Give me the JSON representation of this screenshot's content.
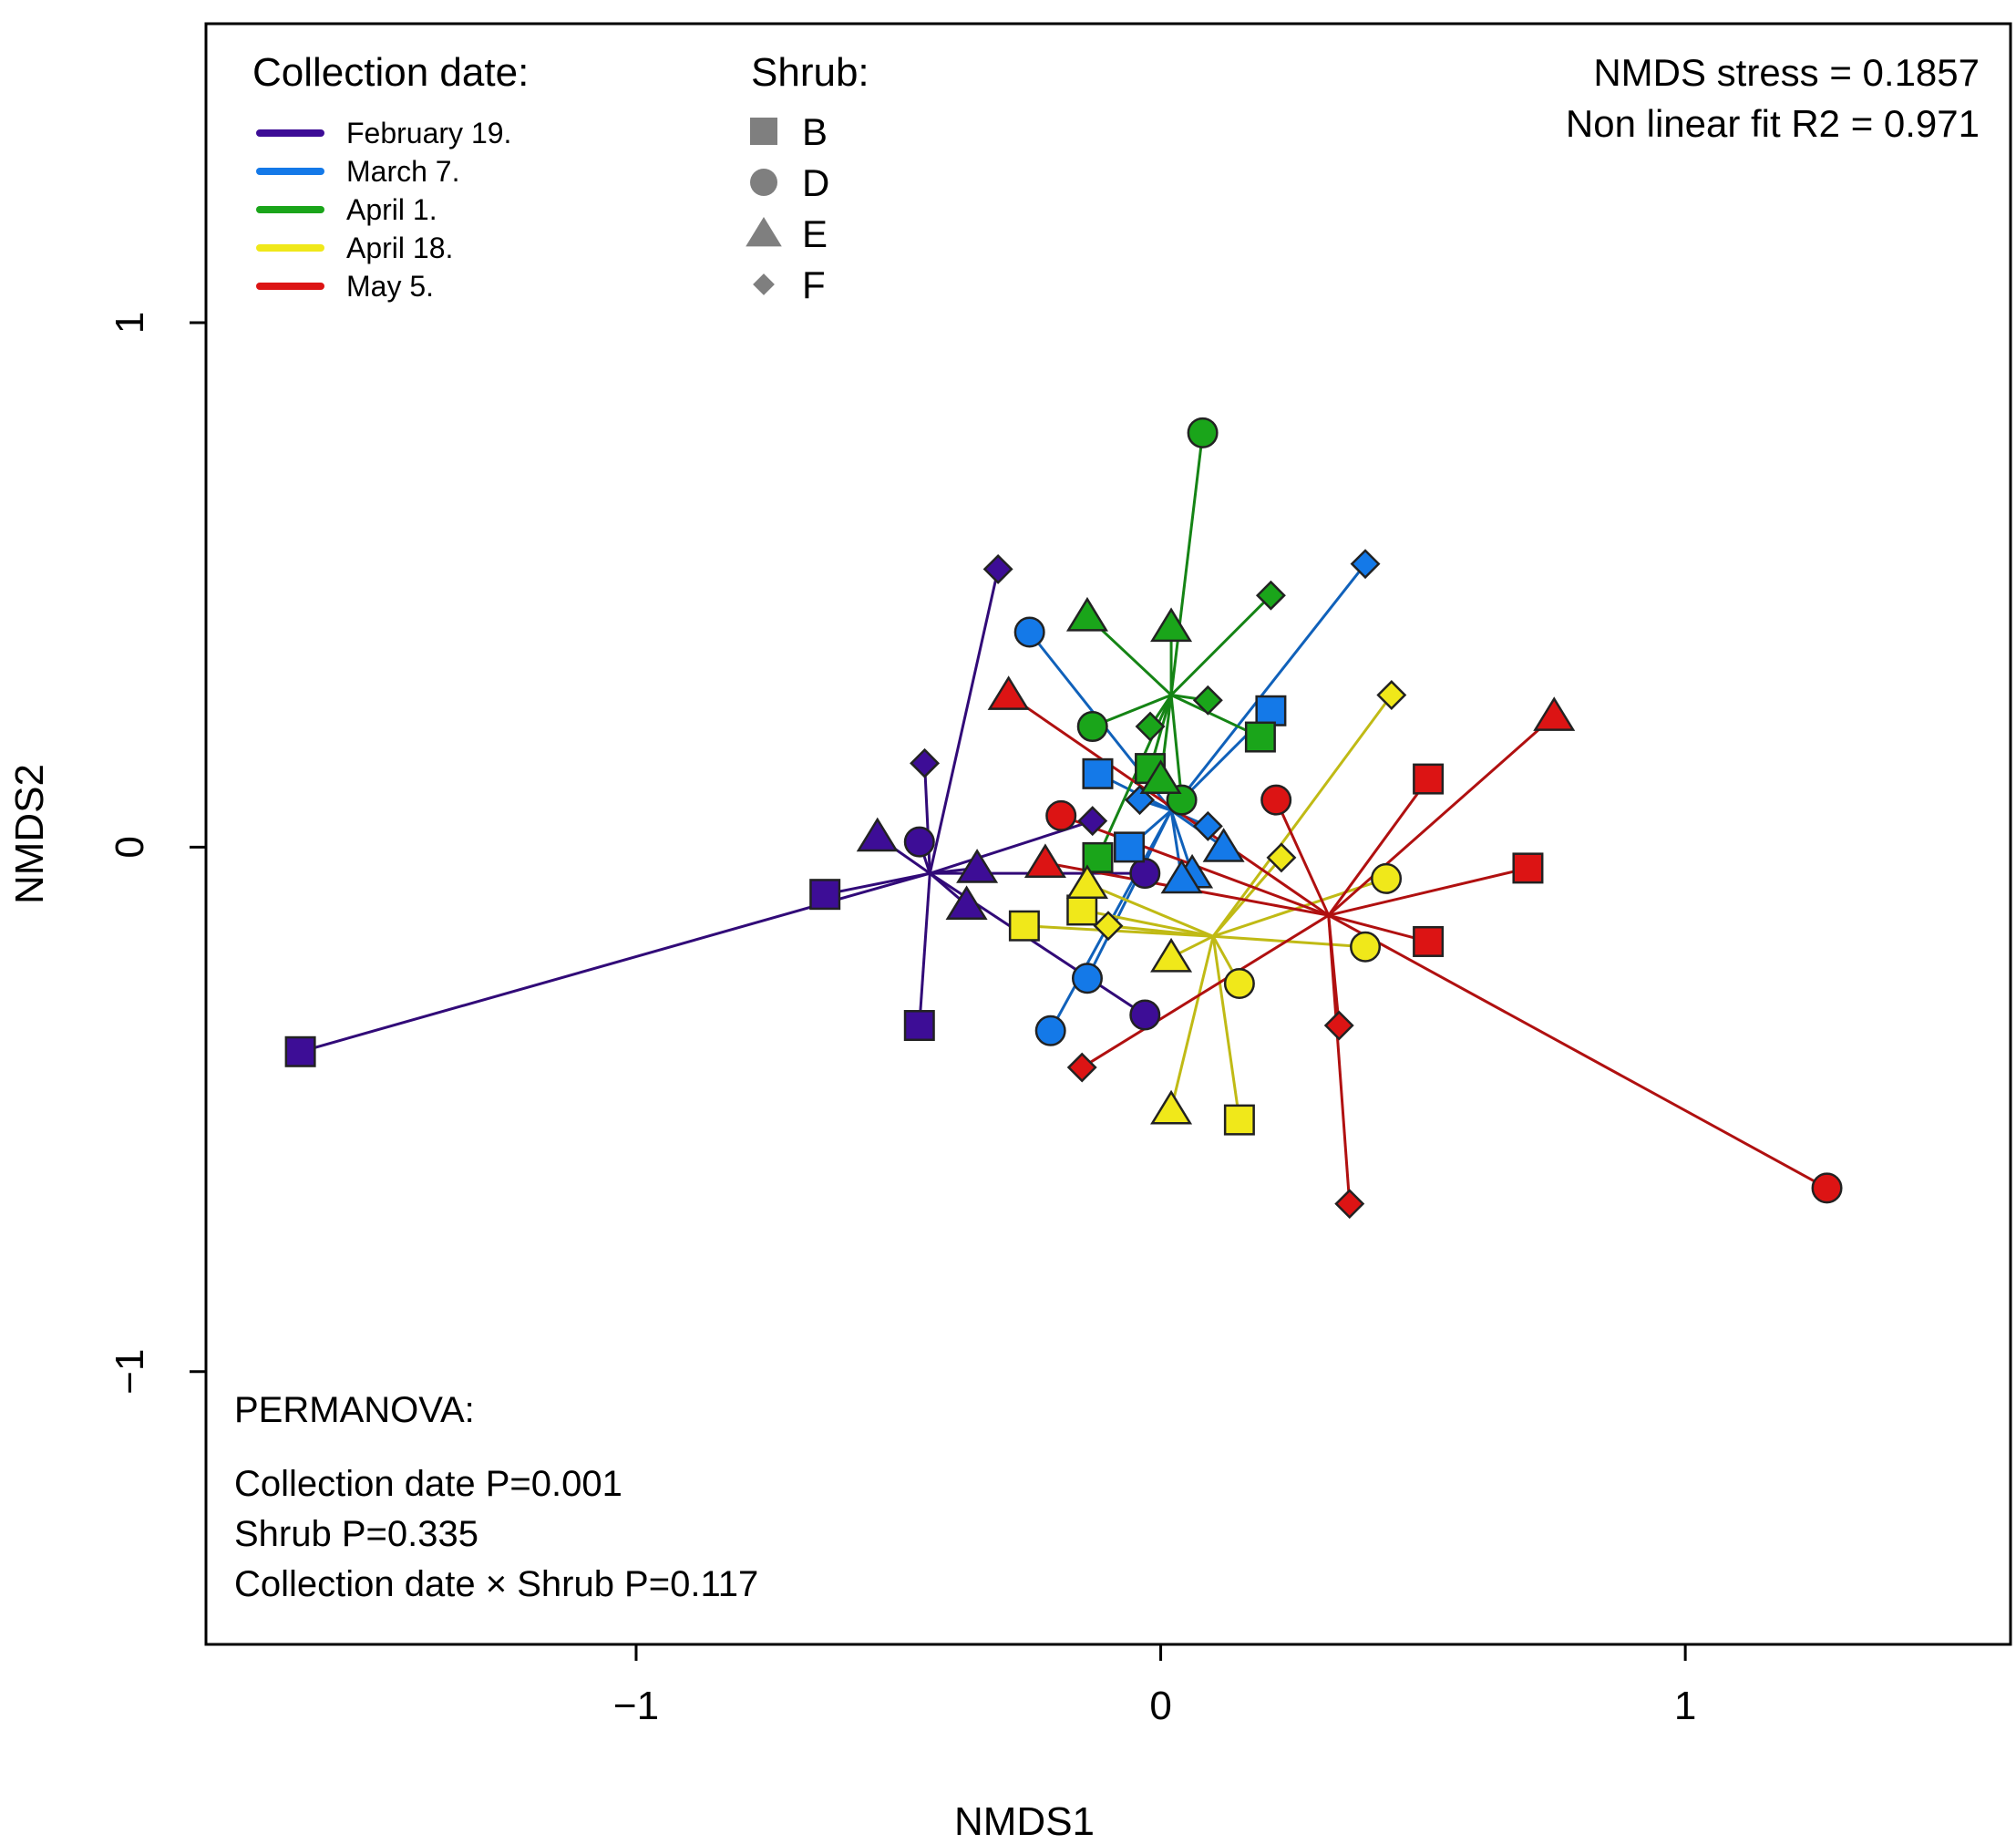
{
  "chart_data": {
    "type": "scatter",
    "xlabel": "NMDS1",
    "ylabel": "NMDS2",
    "xlim": [
      -1.82,
      1.62
    ],
    "ylim": [
      -1.52,
      1.57
    ],
    "xticks": [
      -1,
      0,
      1
    ],
    "yticks": [
      -1,
      0,
      1
    ],
    "xtick_labels": [
      "−1",
      "0",
      "1"
    ],
    "ytick_labels": [
      "−1",
      "0",
      "1"
    ],
    "grid": false,
    "stats": {
      "stress": "NMDS stress = 0.1857",
      "r2": "Non linear fit R2 = 0.971"
    },
    "date_legend": {
      "title": "Collection date:",
      "placement": "top-left"
    },
    "shrub_legend": {
      "title": "Shrub:",
      "placement": "top-center",
      "items": [
        {
          "label": "B",
          "shape": "square"
        },
        {
          "label": "D",
          "shape": "circle"
        },
        {
          "label": "E",
          "shape": "triangle"
        },
        {
          "label": "F",
          "shape": "diamond"
        }
      ]
    },
    "permanova": {
      "title": "PERMANOVA:",
      "lines": [
        "Collection date P=0.001",
        "Shrub P=0.335",
        "Collection date × Shrub P=0.117"
      ]
    },
    "series": [
      {
        "name": "February 19.",
        "color": "#3d0d96",
        "centroid": [
          -0.44,
          -0.05
        ],
        "points": [
          {
            "x": -1.64,
            "y": -0.39,
            "shrub": "B"
          },
          {
            "x": -0.64,
            "y": -0.09,
            "shrub": "B"
          },
          {
            "x": -0.46,
            "y": -0.34,
            "shrub": "B"
          },
          {
            "x": -0.46,
            "y": 0.01,
            "shrub": "D"
          },
          {
            "x": -0.03,
            "y": -0.05,
            "shrub": "D"
          },
          {
            "x": -0.03,
            "y": -0.32,
            "shrub": "D"
          },
          {
            "x": -0.54,
            "y": 0.02,
            "shrub": "E"
          },
          {
            "x": -0.35,
            "y": -0.04,
            "shrub": "E"
          },
          {
            "x": -0.37,
            "y": -0.11,
            "shrub": "E"
          },
          {
            "x": -0.31,
            "y": 0.53,
            "shrub": "F"
          },
          {
            "x": -0.45,
            "y": 0.16,
            "shrub": "F"
          },
          {
            "x": -0.13,
            "y": 0.05,
            "shrub": "F"
          }
        ]
      },
      {
        "name": "March 7.",
        "color": "#1479e8",
        "centroid": [
          0.02,
          0.07
        ],
        "points": [
          {
            "x": 0.21,
            "y": 0.26,
            "shrub": "B"
          },
          {
            "x": -0.12,
            "y": 0.14,
            "shrub": "B"
          },
          {
            "x": -0.06,
            "y": 0.0,
            "shrub": "B"
          },
          {
            "x": -0.25,
            "y": 0.41,
            "shrub": "D"
          },
          {
            "x": -0.14,
            "y": -0.25,
            "shrub": "D"
          },
          {
            "x": -0.21,
            "y": -0.35,
            "shrub": "D"
          },
          {
            "x": 0.06,
            "y": -0.05,
            "shrub": "E"
          },
          {
            "x": 0.12,
            "y": -0.0,
            "shrub": "E"
          },
          {
            "x": 0.04,
            "y": -0.06,
            "shrub": "E"
          },
          {
            "x": 0.39,
            "y": 0.54,
            "shrub": "F"
          },
          {
            "x": -0.04,
            "y": 0.09,
            "shrub": "F"
          },
          {
            "x": 0.09,
            "y": 0.04,
            "shrub": "F"
          }
        ]
      },
      {
        "name": "April 1.",
        "color": "#1aa51a",
        "centroid": [
          0.02,
          0.29
        ],
        "points": [
          {
            "x": 0.19,
            "y": 0.21,
            "shrub": "B"
          },
          {
            "x": -0.02,
            "y": 0.15,
            "shrub": "B"
          },
          {
            "x": -0.12,
            "y": -0.02,
            "shrub": "B"
          },
          {
            "x": 0.08,
            "y": 0.79,
            "shrub": "D"
          },
          {
            "x": -0.13,
            "y": 0.23,
            "shrub": "D"
          },
          {
            "x": 0.04,
            "y": 0.09,
            "shrub": "D"
          },
          {
            "x": -0.14,
            "y": 0.44,
            "shrub": "E"
          },
          {
            "x": 0.02,
            "y": 0.42,
            "shrub": "E"
          },
          {
            "x": 0.0,
            "y": 0.13,
            "shrub": "E"
          },
          {
            "x": 0.21,
            "y": 0.48,
            "shrub": "F"
          },
          {
            "x": 0.09,
            "y": 0.28,
            "shrub": "F"
          },
          {
            "x": -0.02,
            "y": 0.23,
            "shrub": "F"
          }
        ]
      },
      {
        "name": "April 18.",
        "color": "#f0e81a",
        "centroid": [
          0.1,
          -0.17
        ],
        "points": [
          {
            "x": -0.26,
            "y": -0.15,
            "shrub": "B"
          },
          {
            "x": -0.15,
            "y": -0.12,
            "shrub": "B"
          },
          {
            "x": 0.15,
            "y": -0.52,
            "shrub": "B"
          },
          {
            "x": 0.43,
            "y": -0.06,
            "shrub": "D"
          },
          {
            "x": 0.39,
            "y": -0.19,
            "shrub": "D"
          },
          {
            "x": 0.15,
            "y": -0.26,
            "shrub": "D"
          },
          {
            "x": -0.14,
            "y": -0.07,
            "shrub": "E"
          },
          {
            "x": 0.02,
            "y": -0.21,
            "shrub": "E"
          },
          {
            "x": 0.02,
            "y": -0.5,
            "shrub": "E"
          },
          {
            "x": 0.44,
            "y": 0.29,
            "shrub": "F"
          },
          {
            "x": 0.23,
            "y": -0.02,
            "shrub": "F"
          },
          {
            "x": -0.1,
            "y": -0.15,
            "shrub": "F"
          }
        ]
      },
      {
        "name": "May 5.",
        "color": "#dc1414",
        "centroid": [
          0.32,
          -0.13
        ],
        "points": [
          {
            "x": 0.51,
            "y": 0.13,
            "shrub": "B"
          },
          {
            "x": 0.7,
            "y": -0.04,
            "shrub": "B"
          },
          {
            "x": 0.51,
            "y": -0.18,
            "shrub": "B"
          },
          {
            "x": -0.19,
            "y": 0.06,
            "shrub": "D"
          },
          {
            "x": 0.22,
            "y": 0.09,
            "shrub": "D"
          },
          {
            "x": 1.27,
            "y": -0.65,
            "shrub": "D"
          },
          {
            "x": -0.29,
            "y": 0.29,
            "shrub": "E"
          },
          {
            "x": -0.22,
            "y": -0.03,
            "shrub": "E"
          },
          {
            "x": 0.75,
            "y": 0.25,
            "shrub": "E"
          },
          {
            "x": 0.34,
            "y": -0.34,
            "shrub": "F"
          },
          {
            "x": 0.36,
            "y": -0.68,
            "shrub": "F"
          },
          {
            "x": -0.15,
            "y": -0.42,
            "shrub": "F"
          }
        ]
      }
    ]
  }
}
